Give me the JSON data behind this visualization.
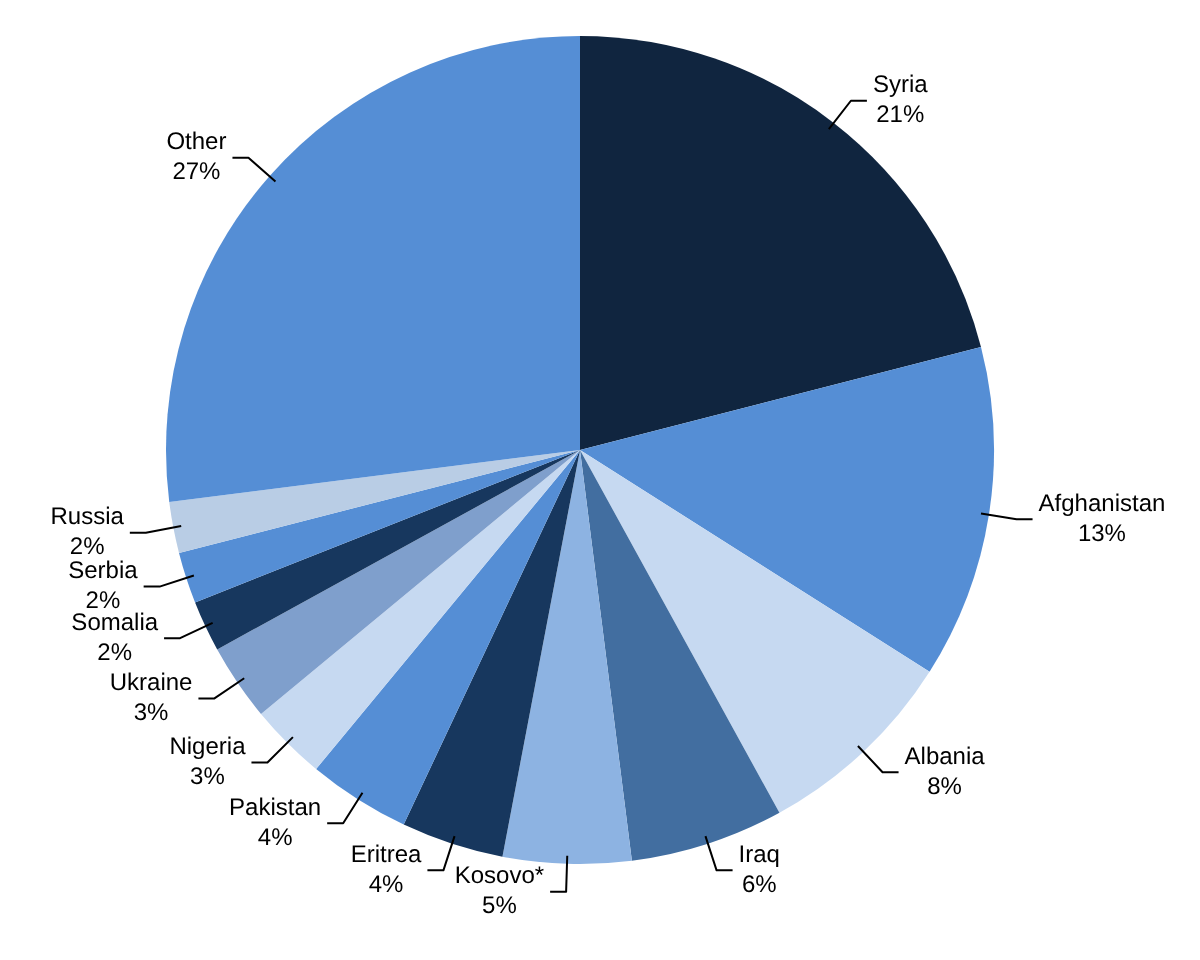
{
  "chart_data": {
    "type": "pie",
    "categories": [
      "Syria",
      "Afghanistan",
      "Albania",
      "Iraq",
      "Kosovo*",
      "Eritrea",
      "Pakistan",
      "Nigeria",
      "Ukraine",
      "Somalia",
      "Serbia",
      "Russia",
      "Other"
    ],
    "values": [
      21,
      13,
      8,
      6,
      5,
      4,
      4,
      3,
      3,
      2,
      2,
      2,
      27
    ],
    "value_labels": [
      "21%",
      "13%",
      "8%",
      "6%",
      "5%",
      "4%",
      "4%",
      "3%",
      "3%",
      "2%",
      "2%",
      "2%",
      "27%"
    ],
    "colors": [
      "#10253f",
      "#558ed5",
      "#c6d9f1",
      "#426ea0",
      "#8db3e2",
      "#17375e",
      "#558ed5",
      "#c6d9f1",
      "#7f9fcc",
      "#17375e",
      "#558ed5",
      "#b9cde5",
      "#558ed5"
    ],
    "legend": false
  }
}
